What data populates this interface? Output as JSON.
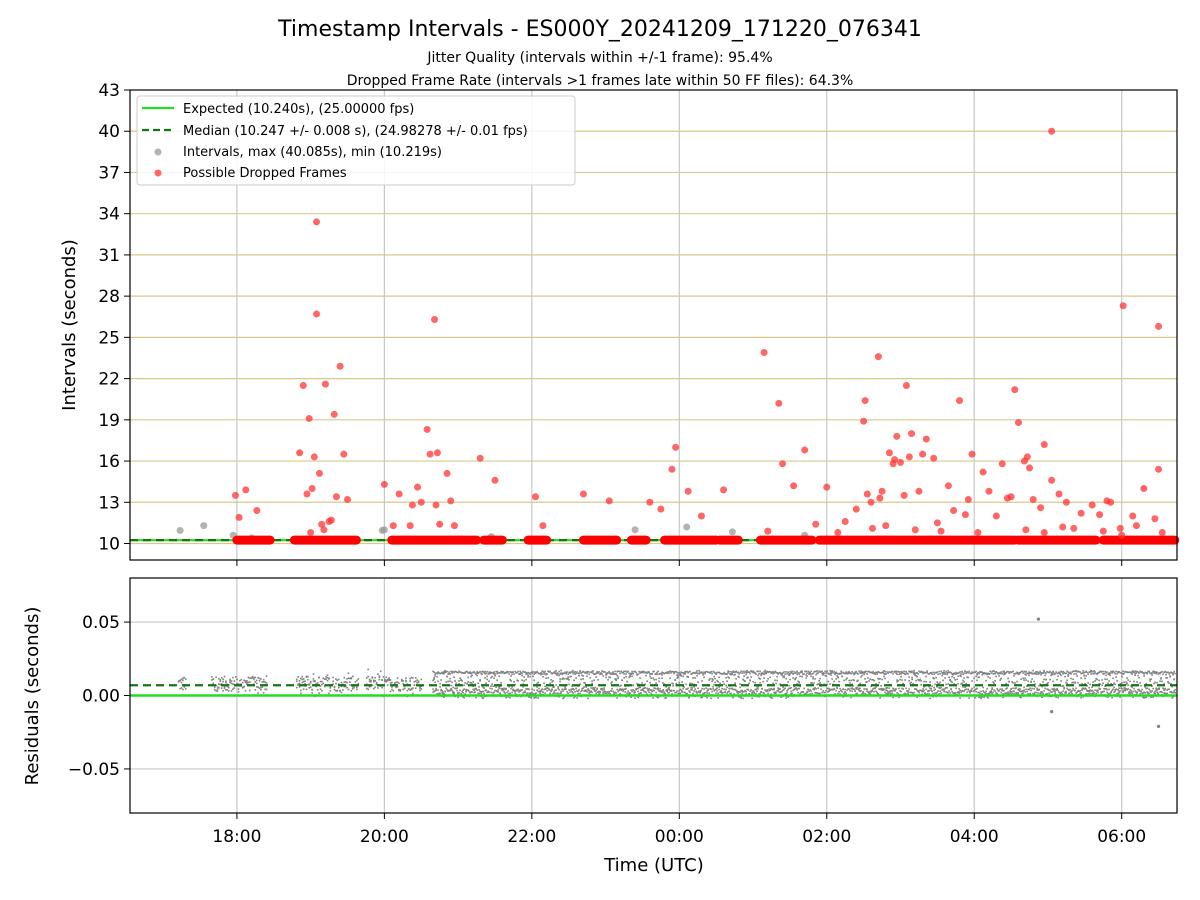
{
  "chart_data": [
    {
      "type": "scatter",
      "panel": "intervals",
      "title": "Timestamp Intervals - ES000Y_20241209_171220_076341",
      "subtitle_lines": [
        "Jitter Quality (intervals within +/-1 frame): 95.4%",
        "Dropped Frame Rate (intervals >1 frames late within 50 FF files): 64.3%"
      ],
      "ylabel": "Intervals (seconds)",
      "ylim": [
        8.8,
        43
      ],
      "yticks": [
        10,
        13,
        16,
        19,
        22,
        25,
        28,
        31,
        34,
        37,
        40,
        43
      ],
      "ytick_labels": [
        "10",
        "13",
        "16",
        "19",
        "22",
        "25",
        "28",
        "31",
        "34",
        "37",
        "40",
        "43"
      ],
      "xlim_hours": [
        16.55,
        30.75
      ],
      "xticks_hours": [
        18,
        20,
        22,
        24,
        26,
        28,
        30
      ],
      "grid": "on",
      "legend_placement": "top-left",
      "expected_interval": 10.24,
      "median_interval": 10.247,
      "legend": [
        {
          "label": "Expected (10.240s), (25.00000 fps)",
          "style": "solid-line",
          "color": "#22dd22"
        },
        {
          "label": "Median (10.247 +/- 0.008 s), (24.98278 +/- 0.01 fps)",
          "style": "dashed-line",
          "color": "#117711"
        },
        {
          "label": "Intervals, max (40.085s), min (10.219s)",
          "style": "marker",
          "color": "#9a9a9a"
        },
        {
          "label": "Possible Dropped Frames",
          "style": "marker",
          "color": "#ff3333"
        }
      ],
      "normal_series": {
        "name": "Intervals, max (40.085s), min (10.219s)",
        "color": "#9a9a9a",
        "x": [
          17.23,
          17.55,
          17.95,
          18.2,
          19.97,
          20.0,
          21.45,
          23.4,
          24.1,
          24.72,
          25.7
        ],
        "y": [
          10.95,
          11.3,
          10.6,
          10.4,
          10.95,
          11.0,
          10.5,
          11.0,
          11.2,
          10.85,
          10.6
        ]
      },
      "dropped_series": {
        "name": "Possible Dropped Frames",
        "color": "#ff3333",
        "x": [
          17.98,
          18.03,
          18.12,
          18.27,
          18.85,
          18.9,
          18.95,
          18.98,
          19.02,
          19.05,
          19.12,
          19.15,
          19.2,
          19.25,
          19.32,
          19.35,
          19.4,
          19.45,
          19.5,
          19.0,
          19.08,
          19.18,
          19.28,
          20.0,
          20.12,
          20.2,
          20.35,
          20.38,
          20.45,
          20.5,
          20.58,
          20.62,
          20.7,
          20.75,
          20.85,
          20.9,
          20.95,
          21.3,
          21.5,
          22.05,
          22.15,
          22.7,
          23.05,
          23.6,
          23.75,
          23.9,
          23.95,
          24.12,
          24.3,
          24.6,
          25.15,
          25.2,
          25.4,
          25.55,
          25.7,
          25.85,
          26.0,
          26.15,
          26.25,
          26.4,
          26.5,
          26.55,
          26.6,
          26.62,
          26.7,
          26.72,
          26.75,
          26.8,
          26.85,
          26.9,
          26.92,
          26.95,
          27.0,
          27.05,
          27.08,
          27.12,
          27.15,
          27.2,
          27.25,
          27.3,
          27.35,
          27.45,
          27.5,
          27.55,
          27.65,
          27.72,
          27.8,
          27.88,
          27.92,
          27.97,
          28.05,
          28.12,
          28.2,
          28.3,
          28.38,
          28.45,
          28.5,
          28.55,
          28.6,
          28.68,
          28.72,
          28.75,
          28.8,
          28.9,
          28.95,
          29.05,
          29.15,
          29.25,
          29.35,
          29.45,
          29.6,
          29.7,
          29.75,
          29.8,
          29.85,
          29.98,
          30.0,
          30.15,
          30.2,
          30.3,
          30.45,
          30.5,
          30.55,
          19.08,
          20.68,
          20.72,
          26.52,
          29.05,
          25.35,
          30.02,
          30.5,
          29.2,
          28.7,
          28.95
        ],
        "y": [
          13.5,
          11.9,
          13.9,
          12.4,
          16.6,
          21.5,
          13.6,
          19.1,
          14.0,
          16.3,
          15.1,
          11.4,
          21.6,
          11.6,
          19.4,
          13.4,
          22.9,
          16.5,
          13.2,
          10.8,
          26.7,
          11.0,
          11.7,
          14.3,
          11.3,
          13.6,
          11.3,
          12.8,
          14.1,
          13.0,
          18.3,
          16.5,
          12.8,
          11.4,
          15.1,
          13.1,
          11.3,
          16.2,
          14.6,
          13.4,
          11.3,
          13.6,
          13.1,
          13.0,
          12.5,
          15.4,
          17.0,
          13.8,
          12.0,
          13.9,
          23.9,
          10.9,
          15.8,
          14.2,
          16.8,
          11.4,
          14.1,
          10.8,
          11.6,
          12.5,
          18.9,
          13.6,
          13.0,
          11.1,
          23.6,
          13.3,
          13.8,
          11.3,
          16.6,
          15.8,
          16.1,
          17.8,
          15.9,
          13.5,
          21.5,
          16.3,
          18.0,
          11.0,
          13.8,
          16.5,
          17.6,
          16.2,
          11.5,
          10.9,
          14.2,
          12.4,
          20.4,
          12.1,
          13.2,
          16.5,
          10.8,
          15.2,
          13.8,
          12.0,
          15.8,
          13.3,
          13.4,
          21.2,
          18.8,
          16.0,
          16.3,
          15.5,
          13.2,
          12.6,
          17.2,
          14.6,
          13.6,
          13.0,
          11.1,
          12.2,
          12.8,
          12.1,
          10.9,
          13.1,
          13.0,
          11.1,
          10.6,
          12.0,
          11.3,
          14.0,
          11.8,
          15.4,
          10.8,
          33.4,
          26.3,
          16.6,
          20.4,
          40.0,
          20.2,
          27.3,
          25.8,
          11.2,
          11.0,
          10.8
        ]
      },
      "dense_band": {
        "color": "#ff0000",
        "y": 10.25,
        "segments": [
          [
            18.0,
            18.45
          ],
          [
            18.78,
            19.62
          ],
          [
            20.1,
            21.25
          ],
          [
            21.35,
            21.6
          ],
          [
            21.95,
            22.2
          ],
          [
            22.7,
            23.15
          ],
          [
            23.35,
            23.55
          ],
          [
            23.8,
            24.5
          ],
          [
            24.55,
            24.8
          ],
          [
            25.1,
            25.8
          ],
          [
            25.9,
            28.55
          ],
          [
            28.6,
            29.65
          ],
          [
            29.75,
            30.72
          ]
        ]
      }
    },
    {
      "type": "scatter",
      "panel": "residuals",
      "ylabel": "Residuals (seconds)",
      "xlabel": "Time (UTC)",
      "ylim": [
        -0.08,
        0.08
      ],
      "yticks": [
        0.05,
        0.0,
        -0.05
      ],
      "ytick_labels": [
        "0.05",
        "0.00",
        "−0.05"
      ],
      "xlim_hours": [
        16.55,
        30.75
      ],
      "xticks_hours": [
        18,
        20,
        22,
        24,
        26,
        28,
        30
      ],
      "xtick_labels": [
        "18:00",
        "20:00",
        "22:00",
        "00:00",
        "02:00",
        "04:00",
        "06:00"
      ],
      "grid": "on",
      "expected_residual": 0.0,
      "median_residual": 0.007,
      "residual_series": {
        "color": "#808080",
        "segments": [
          [
            17.2,
            17.3
          ],
          [
            17.65,
            18.4
          ],
          [
            18.8,
            19.65
          ],
          [
            19.75,
            20.5
          ],
          [
            20.65,
            30.72
          ]
        ],
        "band_low": -0.002,
        "band_high": 0.017
      },
      "outliers": {
        "color": "#808080",
        "x": [
          28.87,
          29.05,
          30.5
        ],
        "y": [
          0.052,
          -0.011,
          -0.021
        ]
      }
    }
  ]
}
